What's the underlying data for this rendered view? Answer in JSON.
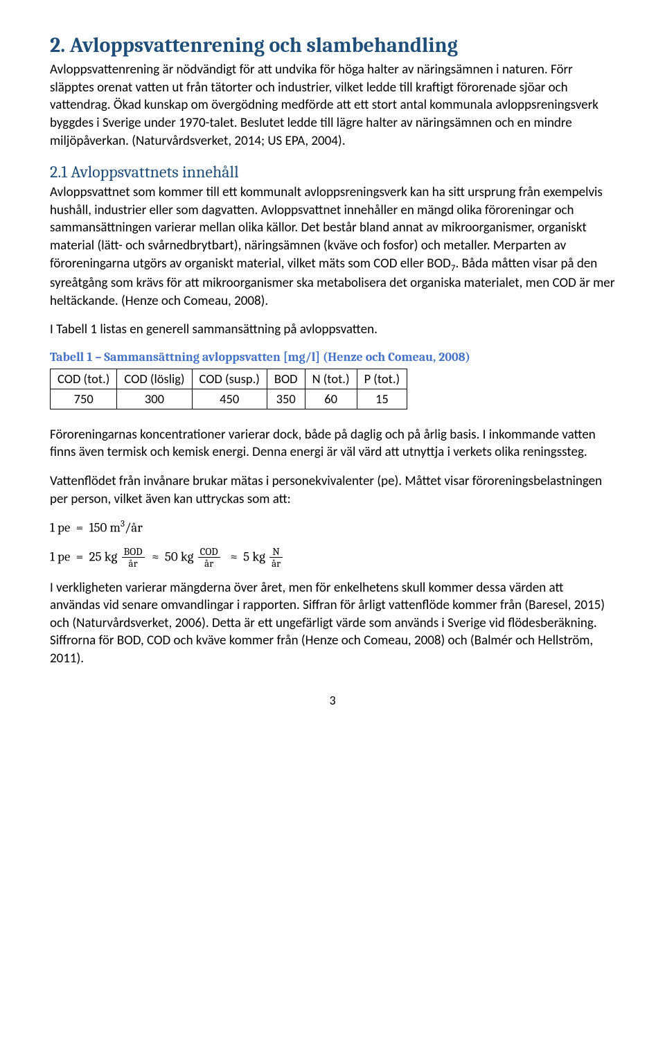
{
  "heading2": "2. Avloppsvattenrening och slambehandling",
  "para1": "Avloppsvattenrening är nödvändigt för att undvika för höga halter av näringsämnen i naturen. Förr släpptes orenat vatten ut från tätorter och industrier, vilket ledde till kraftigt förorenade sjöar och vattendrag. Ökad kunskap om övergödning medförde att ett stort antal kommunala avloppsreningsverk byggdes i Sverige under 1970-talet. Beslutet ledde till lägre halter av näringsämnen och en mindre miljöpåverkan. (Naturvårdsverket, 2014; US EPA, 2004).",
  "heading3": "2.1 Avloppsvattnets innehåll",
  "para2": "Avloppsvattnet som kommer till ett kommunalt avloppsreningsverk kan ha sitt ursprung från exempelvis hushåll, industrier eller som dagvatten. Avloppsvattnet innehåller en mängd olika föroreningar och sammansättningen varierar mellan olika källor. Det består bland annat av mikroorganismer, organiskt material (lätt- och svårnedbrytbart), näringsämnen (kväve och fosfor) och metaller. Merparten av föroreningarna utgörs av organiskt material, vilket mäts som COD eller BOD7. Båda måtten visar på den syreåtgång som krävs för att mikroorganismer ska metabolisera det organiska materialet, men COD är mer heltäckande. (Henze och Comeau, 2008).",
  "para3": "I Tabell 1 listas en generell sammansättning på avloppsvatten.",
  "tableCaption": "Tabell 1 – Sammansättning avloppsvatten [mg/l] (Henze och Comeau, 2008)",
  "table": {
    "columns": [
      "COD (tot.)",
      "COD (löslig)",
      "COD (susp.)",
      "BOD",
      "N (tot.)",
      "P (tot.)"
    ],
    "rows": [
      [
        "750",
        "300",
        "450",
        "350",
        "60",
        "15"
      ]
    ]
  },
  "para4": "Föroreningarnas koncentrationer varierar dock, både på daglig och på årlig basis. I inkommande vatten finns även termisk och kemisk energi. Denna energi är väl värd att utnyttja i verkets olika reningssteg.",
  "para5": "Vattenflödet från invånare brukar mätas i personekvivalenter (pe). Måttet visar föroreningsbelastningen per person, vilket även kan uttryckas som att:",
  "eq1": {
    "lhs": "1 pe",
    "rhs_val": "150",
    "rhs_unit_num": "m",
    "rhs_unit_exp": "3",
    "rhs_unit_den": "/år"
  },
  "eq2": {
    "lhs": "1 pe",
    "t1_coef": "25 kg",
    "t1_num": "BOD",
    "t1_den": "år",
    "approx1": "≈",
    "t2_coef": "50 kg",
    "t2_num": "COD",
    "t2_den": "år",
    "approx2": "≈",
    "t3_coef": "5 kg",
    "t3_num": "N",
    "t3_den": "år"
  },
  "para6": "I verkligheten varierar mängderna över året, men för enkelhetens skull kommer dessa värden att användas vid senare omvandlingar i rapporten. Siffran för årligt vattenflöde kommer från (Baresel, 2015) och (Naturvårdsverket, 2006). Detta är ett ungefärligt värde som används i Sverige vid flödesberäkning. Siffrorna för BOD, COD och kväve kommer från (Henze och Comeau, 2008) och (Balmér och Hellström, 2011).",
  "pageNumber": "3"
}
